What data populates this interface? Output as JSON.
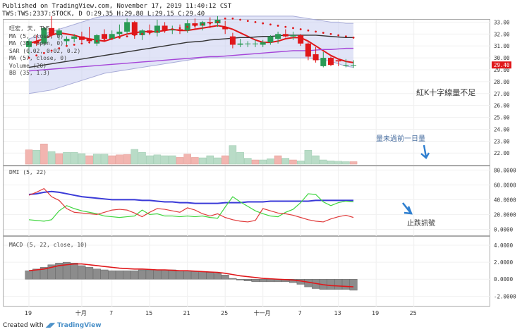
{
  "header": {
    "line1": "Published on TradingView.com, November 17, 2019 11:40:12 CST",
    "line2": "TWS:TWS:2337:STOCK, D O:29.35 H:29.80 L:29.15 C:29.40"
  },
  "footer": {
    "prefix": "Created with",
    "brand": "TradingView"
  },
  "legend": {
    "main": [
      "旺宏, 天, TWS",
      "MA (5, close, 0)",
      "MA (35, open, 0)",
      "SAR (0.02, 0.02, 0.2)",
      "MA (57, close, 0)",
      "Volume (20)",
      "BB (35, 1.3)"
    ],
    "dmi": "DMI (5, 22)",
    "macd": "MACD (5, 22, close, 10)"
  },
  "annotations": {
    "main": "紅K十字線量不足",
    "volume": "量未過前一日量",
    "dmi": "止跌訊號"
  },
  "last_price_label": "29.40",
  "chart_data": [
    {
      "type": "candlestick",
      "title": "旺宏, 天, TWS",
      "ylim": [
        21.6,
        33.2
      ],
      "y_ticks": [
        "33.00",
        "32.00",
        "31.00",
        "30.00",
        "29.00",
        "28.00",
        "27.00",
        "26.00",
        "25.00",
        "24.00",
        "23.00",
        "22.00"
      ],
      "x_tick_labels": [
        {
          "day": 0,
          "label": "19"
        },
        {
          "day": 7,
          "label": "十月"
        },
        {
          "day": 11,
          "label": "7"
        },
        {
          "day": 16,
          "label": "15"
        },
        {
          "day": 21,
          "label": "21"
        },
        {
          "day": 26,
          "label": "25"
        },
        {
          "day": 31,
          "label": "十一月"
        },
        {
          "day": 36,
          "label": "7"
        },
        {
          "day": 41,
          "label": "13"
        },
        {
          "day": 46,
          "label": "19"
        },
        {
          "day": 51,
          "label": "25"
        }
      ],
      "candles": [
        {
          "o": 30.9,
          "h": 31.6,
          "l": 30.3,
          "c": 31.4
        },
        {
          "o": 31.4,
          "h": 31.9,
          "l": 31.0,
          "c": 31.2
        },
        {
          "o": 31.2,
          "h": 32.6,
          "l": 31.0,
          "c": 32.5
        },
        {
          "o": 32.5,
          "h": 33.5,
          "l": 31.7,
          "c": 31.9
        },
        {
          "o": 31.9,
          "h": 32.5,
          "l": 31.5,
          "c": 32.3
        },
        {
          "o": 31.4,
          "h": 31.8,
          "l": 31.0,
          "c": 31.6
        },
        {
          "o": 31.6,
          "h": 32.0,
          "l": 31.3,
          "c": 31.8
        },
        {
          "o": 31.8,
          "h": 32.2,
          "l": 31.3,
          "c": 31.5
        },
        {
          "o": 31.6,
          "h": 32.6,
          "l": 31.2,
          "c": 31.4
        },
        {
          "o": 31.2,
          "h": 32.0,
          "l": 31.0,
          "c": 31.9
        },
        {
          "o": 32.0,
          "h": 32.4,
          "l": 31.4,
          "c": 31.6
        },
        {
          "o": 31.6,
          "h": 32.3,
          "l": 31.5,
          "c": 32.0
        },
        {
          "o": 32.0,
          "h": 32.8,
          "l": 31.8,
          "c": 32.2
        },
        {
          "o": 32.2,
          "h": 33.3,
          "l": 32.0,
          "c": 33.0
        },
        {
          "o": 33.0,
          "h": 33.1,
          "l": 31.6,
          "c": 31.9
        },
        {
          "o": 31.9,
          "h": 32.4,
          "l": 31.5,
          "c": 32.3
        },
        {
          "o": 32.3,
          "h": 32.8,
          "l": 31.9,
          "c": 32.1
        },
        {
          "o": 32.1,
          "h": 33.2,
          "l": 31.8,
          "c": 32.7
        },
        {
          "o": 32.7,
          "h": 33.0,
          "l": 32.1,
          "c": 32.3
        },
        {
          "o": 32.3,
          "h": 32.7,
          "l": 32.0,
          "c": 32.4
        },
        {
          "o": 32.4,
          "h": 32.8,
          "l": 32.0,
          "c": 32.3
        },
        {
          "o": 32.3,
          "h": 33.2,
          "l": 32.1,
          "c": 32.9
        },
        {
          "o": 32.9,
          "h": 33.3,
          "l": 32.4,
          "c": 32.7
        },
        {
          "o": 32.7,
          "h": 33.1,
          "l": 32.3,
          "c": 33.0
        },
        {
          "o": 33.0,
          "h": 33.4,
          "l": 32.5,
          "c": 32.9
        },
        {
          "o": 32.9,
          "h": 33.5,
          "l": 32.6,
          "c": 33.2
        },
        {
          "o": 32.6,
          "h": 33.1,
          "l": 32.0,
          "c": 32.4
        },
        {
          "o": 31.8,
          "h": 32.1,
          "l": 30.8,
          "c": 31.1
        },
        {
          "o": 31.1,
          "h": 31.6,
          "l": 30.9,
          "c": 31.2
        },
        {
          "o": 31.2,
          "h": 31.4,
          "l": 30.9,
          "c": 31.2
        },
        {
          "o": 31.2,
          "h": 31.5,
          "l": 30.9,
          "c": 31.2
        },
        {
          "o": 31.1,
          "h": 31.5,
          "l": 30.9,
          "c": 31.3
        },
        {
          "o": 31.3,
          "h": 31.9,
          "l": 31.1,
          "c": 31.8
        },
        {
          "o": 31.6,
          "h": 32.2,
          "l": 31.2,
          "c": 32.0
        },
        {
          "o": 32.0,
          "h": 32.4,
          "l": 31.7,
          "c": 31.8
        },
        {
          "o": 31.8,
          "h": 32.2,
          "l": 31.5,
          "c": 31.9
        },
        {
          "o": 31.9,
          "h": 32.0,
          "l": 31.0,
          "c": 31.2
        },
        {
          "o": 31.2,
          "h": 31.3,
          "l": 29.8,
          "c": 30.1
        },
        {
          "o": 30.3,
          "h": 30.9,
          "l": 29.6,
          "c": 29.8
        },
        {
          "o": 29.3,
          "h": 30.5,
          "l": 29.2,
          "c": 30.0
        },
        {
          "o": 30.0,
          "h": 30.1,
          "l": 29.3,
          "c": 29.4
        },
        {
          "o": 29.8,
          "h": 29.8,
          "l": 29.3,
          "c": 29.7
        },
        {
          "o": 29.4,
          "h": 29.9,
          "l": 29.2,
          "c": 29.4
        },
        {
          "o": 29.35,
          "h": 29.8,
          "l": 29.15,
          "c": 29.4
        }
      ],
      "series": [
        {
          "name": "MA (5, close, 0)",
          "values": [
            31.2,
            31.4,
            31.6,
            31.9,
            32.1,
            32.0,
            31.9,
            31.7,
            31.6,
            31.5,
            31.4,
            31.6,
            31.8,
            32.0,
            32.1,
            32.2,
            32.2,
            32.2,
            32.3,
            32.4,
            32.3,
            32.3,
            32.4,
            32.5,
            32.6,
            32.7,
            32.6,
            32.4,
            32.1,
            31.8,
            31.5,
            31.3,
            31.3,
            31.4,
            31.6,
            31.7,
            31.7,
            31.4,
            31.0,
            30.6,
            30.2,
            29.9,
            29.7,
            29.6
          ]
        },
        {
          "name": "MA (35, open, 0)",
          "values": [
            29.2,
            29.3,
            29.4,
            29.5,
            29.6,
            29.7,
            29.8,
            29.9,
            30.0,
            30.1,
            30.2,
            30.3,
            30.4,
            30.5,
            30.6,
            30.7,
            30.8,
            30.9,
            31.0,
            31.1,
            31.2,
            31.3,
            31.35,
            31.4,
            31.5,
            31.55,
            31.6,
            31.65,
            31.7,
            31.7,
            31.75,
            31.8,
            31.8,
            31.85,
            31.9,
            31.9,
            31.9,
            31.9,
            31.9,
            31.85,
            31.8,
            31.75,
            31.7,
            31.7
          ]
        },
        {
          "name": "MA (57, close, 0)",
          "values": [
            28.9,
            28.95,
            29.0,
            29.05,
            29.1,
            29.15,
            29.2,
            29.25,
            29.3,
            29.35,
            29.4,
            29.45,
            29.5,
            29.55,
            29.6,
            29.65,
            29.7,
            29.75,
            29.8,
            29.85,
            29.9,
            29.95,
            30.0,
            30.05,
            30.1,
            30.1,
            30.15,
            30.2,
            30.25,
            30.3,
            30.35,
            30.4,
            30.45,
            30.5,
            30.55,
            30.6,
            30.6,
            30.6,
            30.65,
            30.7,
            30.7,
            30.75,
            30.8,
            30.8
          ]
        },
        {
          "name": "BB upper",
          "values": [
            31.6,
            31.8,
            32.0,
            32.2,
            32.4,
            32.6,
            32.8,
            33.0,
            33.2,
            33.4,
            33.5,
            33.5,
            33.5,
            33.5,
            33.5,
            33.5,
            33.5,
            33.5,
            33.5,
            33.5,
            33.5,
            33.5,
            33.5,
            33.5,
            33.5,
            33.5,
            33.5,
            33.5,
            33.5,
            33.5,
            33.5,
            33.5,
            33.5,
            33.5,
            33.5,
            33.5,
            33.4,
            33.3,
            33.2,
            33.1,
            33.0,
            33.0,
            32.9,
            32.9
          ]
        },
        {
          "name": "BB lower",
          "values": [
            27.0,
            27.1,
            27.2,
            27.3,
            27.5,
            27.7,
            27.9,
            28.1,
            28.3,
            28.5,
            28.7,
            28.8,
            28.9,
            29.0,
            29.1,
            29.2,
            29.3,
            29.4,
            29.5,
            29.6,
            29.7,
            29.8,
            29.9,
            30.0,
            30.0,
            30.0,
            30.0,
            30.0,
            30.0,
            30.0,
            30.0,
            30.0,
            30.0,
            30.0,
            30.0,
            30.0,
            30.0,
            30.0,
            29.9,
            29.8,
            29.7,
            29.5,
            29.3,
            29.2
          ]
        }
      ],
      "sar": [
        30.0,
        30.2,
        30.4,
        30.6,
        30.8,
        31.0,
        31.1,
        31.2,
        31.3,
        31.4,
        31.5,
        31.6,
        31.7,
        31.8,
        31.9,
        32.0,
        32.1,
        32.2,
        32.3,
        32.4,
        32.5,
        32.6,
        32.7,
        32.8,
        32.9,
        33.0,
        33.3,
        33.3,
        33.2,
        33.1,
        33.0,
        32.9,
        32.8,
        32.7,
        32.6,
        32.5,
        32.4,
        32.3,
        32.2,
        32.1,
        32.0,
        31.9,
        31.8,
        31.7
      ]
    },
    {
      "type": "bar",
      "title": "Volume (20)",
      "ylim": [
        0,
        100
      ],
      "volumes": [
        {
          "v": 34,
          "up": false
        },
        {
          "v": 33,
          "up": true
        },
        {
          "v": 48,
          "up": false
        },
        {
          "v": 30,
          "up": true
        },
        {
          "v": 25,
          "up": false
        },
        {
          "v": 28,
          "up": true
        },
        {
          "v": 28,
          "up": true
        },
        {
          "v": 25,
          "up": true
        },
        {
          "v": 20,
          "up": false
        },
        {
          "v": 24,
          "up": true
        },
        {
          "v": 24,
          "up": true
        },
        {
          "v": 20,
          "up": false
        },
        {
          "v": 22,
          "up": false
        },
        {
          "v": 23,
          "up": false
        },
        {
          "v": 35,
          "up": true
        },
        {
          "v": 28,
          "up": true
        },
        {
          "v": 20,
          "up": true
        },
        {
          "v": 22,
          "up": true
        },
        {
          "v": 20,
          "up": true
        },
        {
          "v": 20,
          "up": true
        },
        {
          "v": 16,
          "up": false
        },
        {
          "v": 24,
          "up": false
        },
        {
          "v": 16,
          "up": false
        },
        {
          "v": 15,
          "up": true
        },
        {
          "v": 20,
          "up": true
        },
        {
          "v": 15,
          "up": true
        },
        {
          "v": 20,
          "up": false
        },
        {
          "v": 44,
          "up": true
        },
        {
          "v": 28,
          "up": true
        },
        {
          "v": 14,
          "up": true
        },
        {
          "v": 10,
          "up": false
        },
        {
          "v": 10,
          "up": true
        },
        {
          "v": 13,
          "up": true
        },
        {
          "v": 20,
          "up": false
        },
        {
          "v": 14,
          "up": true
        },
        {
          "v": 10,
          "up": false
        },
        {
          "v": 8,
          "up": true
        },
        {
          "v": 33,
          "up": true
        },
        {
          "v": 20,
          "up": true
        },
        {
          "v": 10,
          "up": true
        },
        {
          "v": 8,
          "up": true
        },
        {
          "v": 7,
          "up": true
        },
        {
          "v": 6,
          "up": true
        },
        {
          "v": 6,
          "up": false
        }
      ]
    },
    {
      "type": "line",
      "title": "DMI (5, 22)",
      "ylim": [
        -10,
        85
      ],
      "y_ticks": [
        "80.0000",
        "60.0000",
        "40.0000",
        "20.0000",
        "0.0000"
      ],
      "series": [
        {
          "name": "ADX",
          "values": [
            47,
            48,
            50,
            51,
            50,
            48,
            46,
            44,
            43,
            42,
            41,
            40,
            40,
            40,
            40,
            39,
            39,
            38,
            37,
            37,
            36,
            36,
            35,
            35,
            35,
            35,
            36,
            36,
            36,
            37,
            37,
            37,
            38,
            38,
            38,
            38,
            38,
            38,
            39,
            39,
            39,
            39,
            39,
            39
          ]
        },
        {
          "name": "+DI",
          "values": [
            13,
            12,
            11,
            13,
            25,
            32,
            28,
            25,
            23,
            21,
            18,
            17,
            16,
            17,
            18,
            26,
            20,
            21,
            18,
            18,
            17,
            18,
            17,
            18,
            16,
            15,
            30,
            44,
            37,
            31,
            25,
            21,
            18,
            17,
            23,
            27,
            36,
            48,
            47,
            37,
            32,
            36,
            38,
            37
          ]
        },
        {
          "name": "-DI",
          "values": [
            46,
            50,
            55,
            44,
            39,
            28,
            23,
            22,
            21,
            20,
            23,
            26,
            27,
            26,
            22,
            17,
            23,
            28,
            27,
            25,
            23,
            29,
            26,
            21,
            18,
            21,
            16,
            13,
            11,
            10,
            12,
            28,
            25,
            22,
            21,
            19,
            16,
            13,
            11,
            10,
            14,
            17,
            19,
            16
          ]
        }
      ]
    },
    {
      "type": "bar",
      "title": "MACD (5, 22, close, 10)",
      "ylim": [
        -3.3,
        5.0
      ],
      "y_ticks": [
        "4.0000",
        "2.0000",
        "0.0000",
        "-2.0000"
      ],
      "histogram": [
        1.0,
        1.2,
        1.4,
        1.7,
        1.9,
        2.0,
        1.9,
        1.6,
        1.4,
        1.2,
        1.1,
        1.0,
        1.0,
        1.0,
        1.0,
        1.1,
        1.1,
        1.1,
        1.1,
        1.1,
        1.0,
        1.0,
        0.9,
        0.9,
        0.8,
        0.7,
        0.5,
        0.1,
        -0.1,
        -0.2,
        -0.3,
        -0.3,
        -0.3,
        -0.3,
        -0.3,
        -0.4,
        -0.6,
        -0.9,
        -1.1,
        -1.2,
        -1.2,
        -1.2,
        -1.2,
        -1.3
      ],
      "signal": [
        1.0,
        1.1,
        1.2,
        1.4,
        1.6,
        1.7,
        1.8,
        1.8,
        1.7,
        1.6,
        1.5,
        1.4,
        1.3,
        1.25,
        1.2,
        1.2,
        1.15,
        1.1,
        1.1,
        1.05,
        1.0,
        1.0,
        0.95,
        0.9,
        0.85,
        0.8,
        0.7,
        0.55,
        0.4,
        0.3,
        0.2,
        0.1,
        0.05,
        0.0,
        -0.05,
        -0.1,
        -0.2,
        -0.35,
        -0.5,
        -0.65,
        -0.75,
        -0.8,
        -0.85,
        -0.9
      ]
    }
  ]
}
